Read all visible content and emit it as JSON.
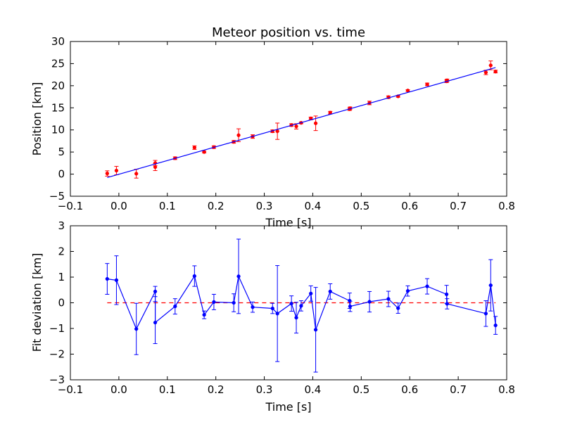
{
  "chart_data": [
    {
      "type": "scatter",
      "title": "Meteor position vs. time",
      "xlabel": "Time [s]",
      "ylabel": "Position [km]",
      "xlim": [
        -0.1,
        0.8
      ],
      "ylim": [
        -5,
        30
      ],
      "xticks": [
        -0.1,
        0.0,
        0.1,
        0.2,
        0.3,
        0.4,
        0.5,
        0.6,
        0.7,
        0.8
      ],
      "xtick_labels": [
        "−0.1",
        "0.0",
        "0.1",
        "0.2",
        "0.3",
        "0.4",
        "0.5",
        "0.6",
        "0.7",
        "0.8"
      ],
      "yticks": [
        -5,
        0,
        5,
        10,
        15,
        20,
        25,
        30
      ],
      "ytick_labels": [
        "−5",
        "0",
        "5",
        "10",
        "15",
        "20",
        "25",
        "30"
      ],
      "grid": false,
      "series": [
        {
          "kind": "errorbar-points",
          "color": "#ff0000",
          "x": [
            -0.024,
            -0.005,
            0.036,
            0.075,
            0.075,
            0.116,
            0.156,
            0.176,
            0.196,
            0.237,
            0.247,
            0.276,
            0.317,
            0.327,
            0.356,
            0.366,
            0.376,
            0.396,
            0.406,
            0.436,
            0.476,
            0.477,
            0.517,
            0.556,
            0.576,
            0.596,
            0.636,
            0.676,
            0.677,
            0.757,
            0.767,
            0.777
          ],
          "y": [
            0.15,
            0.8,
            0.1,
            2.5,
            1.6,
            3.6,
            6.0,
            5.0,
            6.1,
            7.3,
            8.8,
            8.5,
            9.7,
            9.7,
            11.1,
            10.8,
            11.6,
            12.6,
            11.5,
            13.9,
            14.7,
            14.9,
            16.1,
            17.4,
            17.6,
            18.9,
            20.3,
            21.0,
            21.2,
            23.0,
            24.6,
            23.2
          ],
          "yerr": [
            0.6,
            0.95,
            1.0,
            0.6,
            0.8,
            0.3,
            0.4,
            0.2,
            0.3,
            0.3,
            1.45,
            0.4,
            0.3,
            1.85,
            0.3,
            0.6,
            0.2,
            0.3,
            1.65,
            0.3,
            0.3,
            0.3,
            0.4,
            0.3,
            0.2,
            0.2,
            0.3,
            0.3,
            0.3,
            0.5,
            1.0,
            0.3
          ]
        },
        {
          "kind": "fit-line",
          "color": "#0000ff",
          "x": [
            -0.024,
            0.777
          ],
          "y": [
            -0.78,
            24.1
          ]
        }
      ]
    },
    {
      "type": "line",
      "title": "",
      "xlabel": "Time [s]",
      "ylabel": "Fit deviation [km]",
      "xlim": [
        -0.1,
        0.8
      ],
      "ylim": [
        -3,
        3
      ],
      "xticks": [
        -0.1,
        0.0,
        0.1,
        0.2,
        0.3,
        0.4,
        0.5,
        0.6,
        0.7,
        0.8
      ],
      "xtick_labels": [
        "−0.1",
        "0.0",
        "0.1",
        "0.2",
        "0.3",
        "0.4",
        "0.5",
        "0.6",
        "0.7",
        "0.8"
      ],
      "yticks": [
        -3,
        -2,
        -1,
        0,
        1,
        2,
        3
      ],
      "ytick_labels": [
        "−3",
        "−2",
        "−1",
        "0",
        "1",
        "2",
        "3"
      ],
      "grid": false,
      "reference_line": {
        "y": 0,
        "x": [
          -0.024,
          0.777
        ],
        "color": "#ff0000",
        "style": "dashed"
      },
      "series": [
        {
          "kind": "errorbar-line",
          "color": "#0000ff",
          "x": [
            -0.024,
            -0.005,
            0.036,
            0.075,
            0.075,
            0.116,
            0.156,
            0.176,
            0.196,
            0.237,
            0.247,
            0.276,
            0.317,
            0.327,
            0.356,
            0.366,
            0.376,
            0.396,
            0.406,
            0.436,
            0.476,
            0.477,
            0.517,
            0.556,
            0.576,
            0.596,
            0.636,
            0.676,
            0.677,
            0.757,
            0.767,
            0.777
          ],
          "y": [
            0.93,
            0.88,
            -1.02,
            0.44,
            -0.77,
            -0.14,
            1.04,
            -0.47,
            0.03,
            0.0,
            1.03,
            -0.17,
            -0.22,
            -0.42,
            -0.03,
            -0.58,
            -0.12,
            0.36,
            -1.05,
            0.44,
            0.08,
            -0.14,
            0.04,
            0.15,
            -0.21,
            0.46,
            0.64,
            0.33,
            -0.04,
            -0.42,
            0.68,
            -0.88
          ],
          "yerr": [
            0.6,
            0.95,
            1.0,
            0.2,
            0.82,
            0.3,
            0.4,
            0.15,
            0.3,
            0.35,
            1.45,
            0.2,
            0.2,
            1.87,
            0.3,
            0.6,
            0.2,
            0.3,
            1.65,
            0.3,
            0.3,
            0.2,
            0.4,
            0.3,
            0.2,
            0.2,
            0.3,
            0.35,
            0.2,
            0.5,
            1.0,
            0.35
          ]
        }
      ]
    }
  ]
}
